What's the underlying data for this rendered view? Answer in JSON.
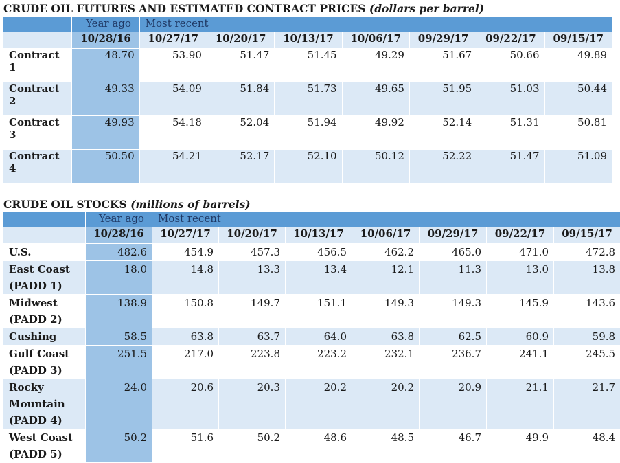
{
  "futures": {
    "title": "CRUDE OIL FUTURES AND ESTIMATED CONTRACT PRICES",
    "units": "(dollars per barrel)",
    "year_ago_label": "Year ago",
    "most_recent_label": "Most recent",
    "dates": [
      "10/28/16",
      "10/27/17",
      "10/20/17",
      "10/13/17",
      "10/06/17",
      "09/29/17",
      "09/22/17",
      "09/15/17"
    ],
    "rows": [
      {
        "label": "Contract 1",
        "values": [
          "48.70",
          "53.90",
          "51.47",
          "51.45",
          "49.29",
          "51.67",
          "50.66",
          "49.89"
        ]
      },
      {
        "label": "Contract 2",
        "values": [
          "49.33",
          "54.09",
          "51.84",
          "51.73",
          "49.65",
          "51.95",
          "51.03",
          "50.44"
        ]
      },
      {
        "label": "Contract 3",
        "values": [
          "49.93",
          "54.18",
          "52.04",
          "51.94",
          "49.92",
          "52.14",
          "51.31",
          "50.81"
        ]
      },
      {
        "label": "Contract 4",
        "values": [
          "50.50",
          "54.21",
          "52.17",
          "52.10",
          "50.12",
          "52.22",
          "51.47",
          "51.09"
        ]
      }
    ]
  },
  "stocks": {
    "title": "CRUDE OIL STOCKS",
    "units": "(millions of barrels)",
    "year_ago_label": "Year ago",
    "most_recent_label": "Most recent",
    "dates": [
      "10/28/16",
      "10/27/17",
      "10/20/17",
      "10/13/17",
      "10/06/17",
      "09/29/17",
      "09/22/17",
      "09/15/17"
    ],
    "rows": [
      {
        "label": "U.S.",
        "values": [
          "482.6",
          "454.9",
          "457.3",
          "456.5",
          "462.2",
          "465.0",
          "471.0",
          "472.8"
        ]
      },
      {
        "label": "East Coast (PADD 1)",
        "values": [
          "18.0",
          "14.8",
          "13.3",
          "13.4",
          "12.1",
          "11.3",
          "13.0",
          "13.8"
        ]
      },
      {
        "label": "Midwest (PADD 2)",
        "values": [
          "138.9",
          "150.8",
          "149.7",
          "151.1",
          "149.3",
          "149.3",
          "145.9",
          "143.6"
        ]
      },
      {
        "label": "Cushing",
        "values": [
          "58.5",
          "63.8",
          "63.7",
          "64.0",
          "63.8",
          "62.5",
          "60.9",
          "59.8"
        ]
      },
      {
        "label": "Gulf Coast (PADD 3)",
        "values": [
          "251.5",
          "217.0",
          "223.8",
          "223.2",
          "232.1",
          "236.7",
          "241.1",
          "245.5"
        ]
      },
      {
        "label": "Rocky Mountain (PADD 4)",
        "values": [
          "24.0",
          "20.6",
          "20.3",
          "20.2",
          "20.2",
          "20.9",
          "21.1",
          "21.7"
        ]
      },
      {
        "label": "West Coast (PADD 5)",
        "values": [
          "50.2",
          "51.6",
          "50.2",
          "48.6",
          "48.5",
          "46.7",
          "49.9",
          "48.4"
        ]
      }
    ]
  }
}
